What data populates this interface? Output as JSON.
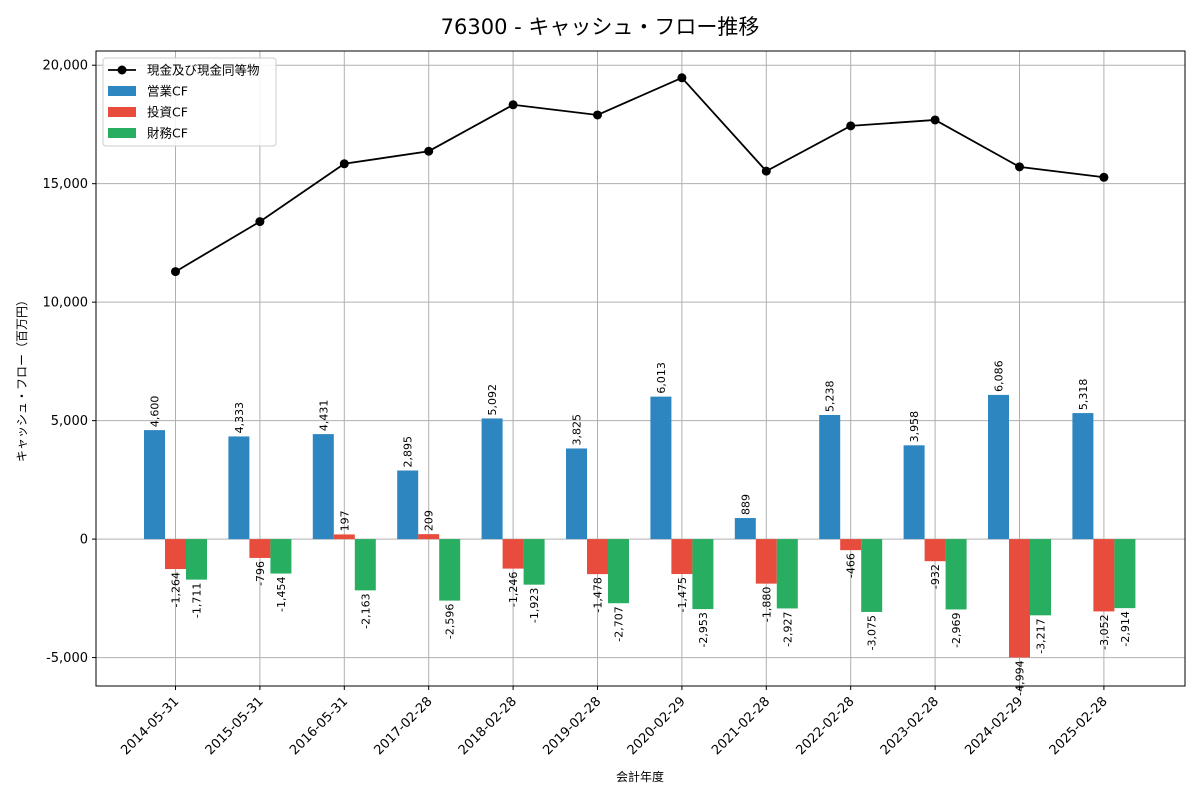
{
  "chart_data": {
    "type": "bar",
    "title": "76300 - キャッシュ・フロー推移",
    "xlabel": "会計年度",
    "ylabel": "キャッシュ・フロー（百万円）",
    "categories": [
      "2014-05-31",
      "2015-05-31",
      "2016-05-31",
      "2017-02-28",
      "2018-02-28",
      "2019-02-28",
      "2020-02-29",
      "2021-02-28",
      "2022-02-28",
      "2023-02-28",
      "2024-02-29",
      "2025-02-28"
    ],
    "ylim": [
      -6200,
      20600
    ],
    "yticks": [
      -5000,
      0,
      5000,
      10000,
      15000,
      20000
    ],
    "ytick_labels": [
      "-5,000",
      "0",
      "5,000",
      "10,000",
      "15,000",
      "20,000"
    ],
    "grid": true,
    "legend_position": "top-left",
    "series": [
      {
        "name": "営業CF",
        "type": "bar",
        "color": "#2e86c1",
        "values": [
          4600,
          4333,
          4431,
          2895,
          5092,
          3825,
          6013,
          889,
          5238,
          3958,
          6086,
          5318
        ],
        "labels": [
          "4,600",
          "4,333",
          "4,431",
          "2,895",
          "5,092",
          "3,825",
          "6,013",
          "889",
          "5,238",
          "3,958",
          "6,086",
          "5,318"
        ]
      },
      {
        "name": "投資CF",
        "type": "bar",
        "color": "#e74c3c",
        "values": [
          -1264,
          -796,
          197,
          209,
          -1246,
          -1478,
          -1475,
          -1880,
          -466,
          -932,
          -4994,
          -3052
        ],
        "labels": [
          "-1,264",
          "-796",
          "197",
          "209",
          "-1,246",
          "-1,478",
          "-1,475",
          "-1,880",
          "-466",
          "-932",
          "-4,994",
          "-3,052"
        ]
      },
      {
        "name": "財務CF",
        "type": "bar",
        "color": "#27ae60",
        "values": [
          -1711,
          -1454,
          -2163,
          -2596,
          -1923,
          -2707,
          -2953,
          -2927,
          -3075,
          -2969,
          -3217,
          -2914
        ],
        "labels": [
          "-1,711",
          "-1,454",
          "-2,163",
          "-2,596",
          "-1,923",
          "-2,707",
          "-2,953",
          "-2,927",
          "-3,075",
          "-2,969",
          "-3,217",
          "-2,914"
        ]
      },
      {
        "name": "現金及び現金同等物",
        "type": "line",
        "color": "#000000",
        "values": [
          11290,
          13400,
          15840,
          16370,
          18330,
          17900,
          19470,
          15530,
          17440,
          17690,
          15710,
          15270
        ]
      }
    ]
  }
}
